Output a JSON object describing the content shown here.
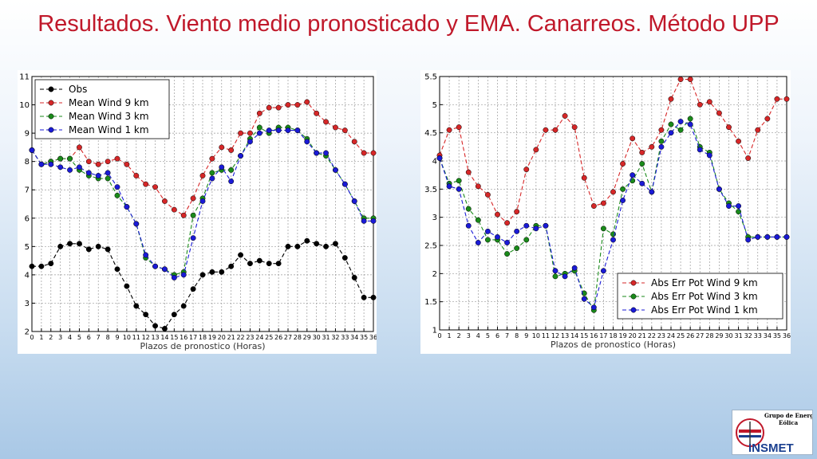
{
  "slide": {
    "title": "Resultados. Viento medio pronosticado y EMA. Canarreos. Método UPP"
  },
  "logo": {
    "line1": "Grupo de Energía",
    "line2": "Eólica",
    "name": "INSMET"
  },
  "colors": {
    "title": "#c0182a",
    "obs": "#000000",
    "km9": "#d62728",
    "km3": "#1a8a1a",
    "km1": "#1a1ad6"
  },
  "chart_data": [
    {
      "type": "line",
      "xlabel": "Plazos de pronostico (Horas)",
      "ylabel": "",
      "xlim": [
        0,
        36
      ],
      "ylim": [
        2,
        11
      ],
      "yticks": [
        2,
        3,
        4,
        5,
        6,
        7,
        8,
        9,
        10,
        11
      ],
      "grid": true,
      "legend_position": "top-left",
      "x": [
        0,
        1,
        2,
        3,
        4,
        5,
        6,
        7,
        8,
        9,
        10,
        11,
        12,
        13,
        14,
        15,
        16,
        17,
        18,
        19,
        20,
        21,
        22,
        23,
        24,
        25,
        26,
        27,
        28,
        29,
        30,
        31,
        32,
        33,
        34,
        35,
        36
      ],
      "series": [
        {
          "name": "Obs",
          "color": "#000000",
          "values": [
            4.3,
            4.3,
            4.4,
            5.0,
            5.1,
            5.1,
            4.9,
            5.0,
            4.9,
            4.2,
            3.6,
            2.9,
            2.6,
            2.2,
            2.1,
            2.6,
            2.9,
            3.5,
            4.0,
            4.1,
            4.1,
            4.3,
            4.7,
            4.4,
            4.5,
            4.4,
            4.4,
            5.0,
            5.0,
            5.2,
            5.1,
            5.0,
            5.1,
            4.6,
            3.9,
            3.2,
            3.2
          ]
        },
        {
          "name": "Mean Wind 9 km",
          "color": "#d62728",
          "values": [
            8.4,
            7.9,
            8.0,
            8.1,
            8.1,
            8.5,
            8.0,
            7.9,
            8.0,
            8.1,
            7.9,
            7.5,
            7.2,
            7.1,
            6.6,
            6.3,
            6.1,
            6.7,
            7.5,
            8.1,
            8.5,
            8.4,
            9.0,
            9.0,
            9.7,
            9.9,
            9.9,
            10.0,
            10.0,
            10.1,
            9.7,
            9.4,
            9.2,
            9.1,
            8.7,
            8.3,
            8.3
          ]
        },
        {
          "name": "Mean Wind 3 km",
          "color": "#1a8a1a",
          "values": [
            8.4,
            7.9,
            8.0,
            8.1,
            8.1,
            7.7,
            7.5,
            7.4,
            7.4,
            6.8,
            6.4,
            5.8,
            4.6,
            4.3,
            4.2,
            4.0,
            4.1,
            6.1,
            6.7,
            7.6,
            7.7,
            7.7,
            8.2,
            8.8,
            9.2,
            9.0,
            9.2,
            9.2,
            9.1,
            8.8,
            8.3,
            8.2,
            7.7,
            7.2,
            6.6,
            6.0,
            6.0
          ]
        },
        {
          "name": "Mean Wind 1 km",
          "color": "#1a1ad6",
          "values": [
            8.4,
            7.9,
            7.9,
            7.8,
            7.7,
            7.8,
            7.6,
            7.5,
            7.6,
            7.1,
            6.4,
            5.8,
            4.7,
            4.3,
            4.2,
            3.9,
            4.0,
            5.3,
            6.6,
            7.4,
            7.8,
            7.3,
            8.2,
            8.7,
            9.0,
            9.1,
            9.1,
            9.1,
            9.1,
            8.7,
            8.3,
            8.3,
            7.7,
            7.2,
            6.6,
            5.9,
            5.9
          ]
        }
      ]
    },
    {
      "type": "line",
      "xlabel": "Plazos de pronostico (Horas)",
      "ylabel": "",
      "xlim": [
        0,
        36
      ],
      "ylim": [
        1.0,
        5.5
      ],
      "yticks": [
        1.0,
        1.5,
        2.0,
        2.5,
        3.0,
        3.5,
        4.0,
        4.5,
        5.0,
        5.5
      ],
      "grid": true,
      "legend_position": "bottom-right",
      "x": [
        0,
        1,
        2,
        3,
        4,
        5,
        6,
        7,
        8,
        9,
        10,
        11,
        12,
        13,
        14,
        15,
        16,
        17,
        18,
        19,
        20,
        21,
        22,
        23,
        24,
        25,
        26,
        27,
        28,
        29,
        30,
        31,
        32,
        33,
        34,
        35,
        36
      ],
      "series": [
        {
          "name": "Abs Err Pot Wind 9 km",
          "color": "#d62728",
          "values": [
            4.1,
            4.55,
            4.6,
            3.8,
            3.55,
            3.4,
            3.05,
            2.9,
            3.1,
            3.85,
            4.2,
            4.55,
            4.55,
            4.8,
            4.6,
            3.7,
            3.2,
            3.25,
            3.45,
            3.95,
            4.4,
            4.15,
            4.25,
            4.55,
            5.1,
            5.45,
            5.45,
            5.0,
            5.05,
            4.85,
            4.6,
            4.35,
            4.05,
            4.55,
            4.75,
            5.1,
            5.1
          ]
        },
        {
          "name": "Abs Err Pot Wind 3 km",
          "color": "#1a8a1a",
          "values": [
            4.05,
            3.6,
            3.65,
            3.15,
            2.95,
            2.6,
            2.6,
            2.35,
            2.45,
            2.6,
            2.85,
            2.85,
            1.95,
            2.0,
            2.05,
            1.65,
            1.35,
            2.8,
            2.7,
            3.5,
            3.65,
            3.95,
            3.45,
            4.35,
            4.65,
            4.55,
            4.75,
            4.25,
            4.15,
            3.5,
            3.25,
            3.1,
            2.65,
            2.65,
            2.65,
            2.65,
            2.65
          ]
        },
        {
          "name": "Abs Err Pot Wind 1 km",
          "color": "#1a1ad6",
          "values": [
            4.05,
            3.55,
            3.5,
            2.85,
            2.55,
            2.75,
            2.65,
            2.55,
            2.75,
            2.85,
            2.8,
            2.85,
            2.05,
            1.95,
            2.1,
            1.55,
            1.4,
            2.05,
            2.6,
            3.3,
            3.75,
            3.6,
            3.45,
            4.25,
            4.5,
            4.7,
            4.65,
            4.2,
            4.1,
            3.5,
            3.2,
            3.2,
            2.6,
            2.65,
            2.65,
            2.65,
            2.65
          ]
        }
      ]
    }
  ]
}
